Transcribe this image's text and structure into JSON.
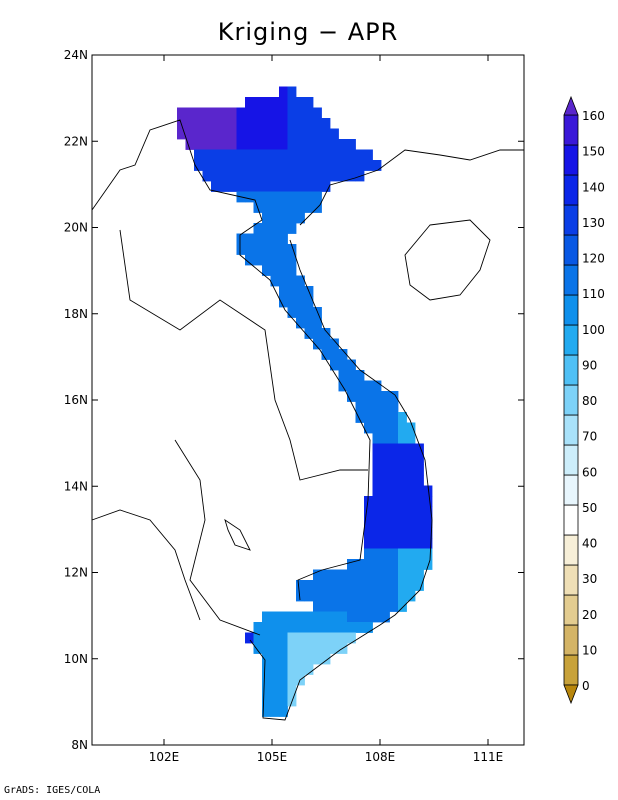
{
  "map": {
    "title": "Kriging − APR",
    "credit": "GrADS: IGES/COLA",
    "longitude_ticks": [
      "102E",
      "105E",
      "108E",
      "111E"
    ],
    "latitude_ticks": [
      "24N",
      "22N",
      "20N",
      "18N",
      "16N",
      "14N",
      "12N",
      "10N",
      "8N"
    ],
    "lon_range": [
      100.0,
      112.0
    ],
    "lat_range": [
      8.0,
      24.0
    ],
    "colorbar": {
      "labels": [
        "160",
        "150",
        "140",
        "130",
        "120",
        "110",
        "100",
        "90",
        "80",
        "70",
        "60",
        "50",
        "40",
        "30",
        "20",
        "10",
        "0"
      ],
      "colors": [
        "#b8860b",
        "#c8a23a",
        "#d4b466",
        "#e3cc90",
        "#efdfb6",
        "#f7efd8",
        "#ffffff",
        "#e8f6fd",
        "#cdeefb",
        "#a9e2fa",
        "#7dd2f8",
        "#4fc0f5",
        "#22aaf0",
        "#0f90ec",
        "#0a74e8",
        "#0858e4",
        "#0a3ee6",
        "#0b26e8",
        "#1614e6",
        "#3a18d8",
        "#5a26cc"
      ]
    }
  }
}
